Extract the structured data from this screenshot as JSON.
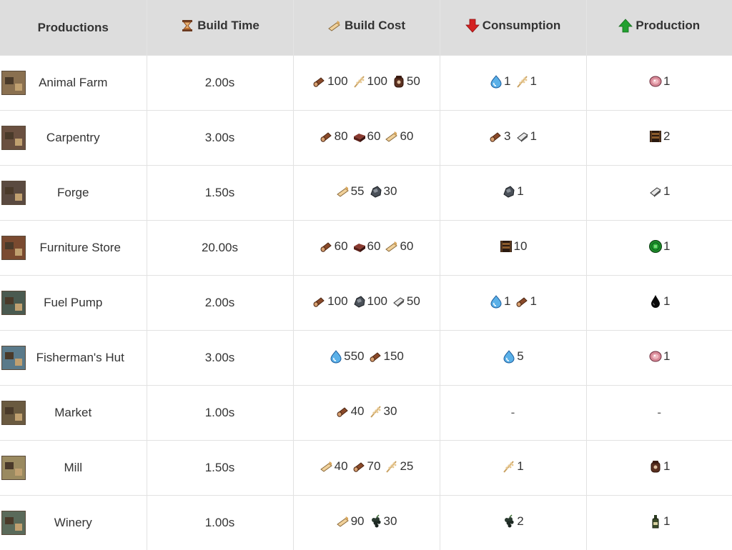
{
  "headers": {
    "productions": "Productions",
    "build_time": "Build Time",
    "build_cost": "Build Cost",
    "consumption": "Consumption",
    "production": "Production"
  },
  "header_icons": {
    "build_time": "hourglass-icon",
    "build_cost": "plank-icon",
    "consumption": "red-down-arrow-icon",
    "production": "green-up-arrow-icon"
  },
  "rows": [
    {
      "name": "Animal Farm",
      "thumb": "animal-farm-thumbnail",
      "time": "2.00s",
      "cost": [
        {
          "icon": "wood",
          "qty": "100"
        },
        {
          "icon": "wheat",
          "qty": "100"
        },
        {
          "icon": "flour",
          "qty": "50"
        }
      ],
      "consumption": [
        {
          "icon": "water",
          "qty": "1"
        },
        {
          "icon": "wheat",
          "qty": "1"
        }
      ],
      "production": [
        {
          "icon": "meat",
          "qty": "1"
        }
      ]
    },
    {
      "name": "Carpentry",
      "thumb": "carpentry-thumbnail",
      "time": "3.00s",
      "cost": [
        {
          "icon": "wood",
          "qty": "80"
        },
        {
          "icon": "brick",
          "qty": "60"
        },
        {
          "icon": "plank",
          "qty": "60"
        }
      ],
      "consumption": [
        {
          "icon": "wood",
          "qty": "3"
        },
        {
          "icon": "iron",
          "qty": "1"
        }
      ],
      "production": [
        {
          "icon": "furniture",
          "qty": "2"
        }
      ]
    },
    {
      "name": "Forge",
      "thumb": "forge-thumbnail",
      "time": "1.50s",
      "cost": [
        {
          "icon": "plank",
          "qty": "55"
        },
        {
          "icon": "ore",
          "qty": "30"
        }
      ],
      "consumption": [
        {
          "icon": "ore",
          "qty": "1"
        }
      ],
      "production": [
        {
          "icon": "iron",
          "qty": "1"
        }
      ]
    },
    {
      "name": "Furniture Store",
      "thumb": "furniture-store-thumbnail",
      "time": "20.00s",
      "cost": [
        {
          "icon": "wood",
          "qty": "60"
        },
        {
          "icon": "brick",
          "qty": "60"
        },
        {
          "icon": "plank",
          "qty": "60"
        }
      ],
      "consumption": [
        {
          "icon": "furniture",
          "qty": "10"
        }
      ],
      "production": [
        {
          "icon": "coin",
          "qty": "1"
        }
      ]
    },
    {
      "name": "Fuel Pump",
      "thumb": "fuel-pump-thumbnail",
      "time": "2.00s",
      "cost": [
        {
          "icon": "wood",
          "qty": "100"
        },
        {
          "icon": "ore",
          "qty": "100"
        },
        {
          "icon": "iron",
          "qty": "50"
        }
      ],
      "consumption": [
        {
          "icon": "water",
          "qty": "1"
        },
        {
          "icon": "wood",
          "qty": "1"
        }
      ],
      "production": [
        {
          "icon": "oil",
          "qty": "1"
        }
      ]
    },
    {
      "name": "Fisherman's Hut",
      "thumb": "fishermans-hut-thumbnail",
      "time": "3.00s",
      "cost": [
        {
          "icon": "water",
          "qty": "550"
        },
        {
          "icon": "wood",
          "qty": "150"
        }
      ],
      "consumption": [
        {
          "icon": "water",
          "qty": "5"
        }
      ],
      "production": [
        {
          "icon": "meat",
          "qty": "1"
        }
      ]
    },
    {
      "name": "Market",
      "thumb": "market-thumbnail",
      "time": "1.00s",
      "cost": [
        {
          "icon": "wood",
          "qty": "40"
        },
        {
          "icon": "wheat",
          "qty": "30"
        }
      ],
      "consumption": [],
      "production": []
    },
    {
      "name": "Mill",
      "thumb": "mill-thumbnail",
      "time": "1.50s",
      "cost": [
        {
          "icon": "plank",
          "qty": "40"
        },
        {
          "icon": "wood",
          "qty": "70"
        },
        {
          "icon": "wheat",
          "qty": "25"
        }
      ],
      "consumption": [
        {
          "icon": "wheat",
          "qty": "1"
        }
      ],
      "production": [
        {
          "icon": "flour",
          "qty": "1"
        }
      ]
    },
    {
      "name": "Winery",
      "thumb": "winery-thumbnail",
      "time": "1.00s",
      "cost": [
        {
          "icon": "plank",
          "qty": "90"
        },
        {
          "icon": "grapes",
          "qty": "30"
        }
      ],
      "consumption": [
        {
          "icon": "grapes",
          "qty": "2"
        }
      ],
      "production": [
        {
          "icon": "wine",
          "qty": "1"
        }
      ]
    }
  ],
  "empty_placeholder": "-",
  "colors": {
    "header_bg": "#dddddd",
    "grid_line": "#e2e2e2",
    "text": "#333333"
  }
}
